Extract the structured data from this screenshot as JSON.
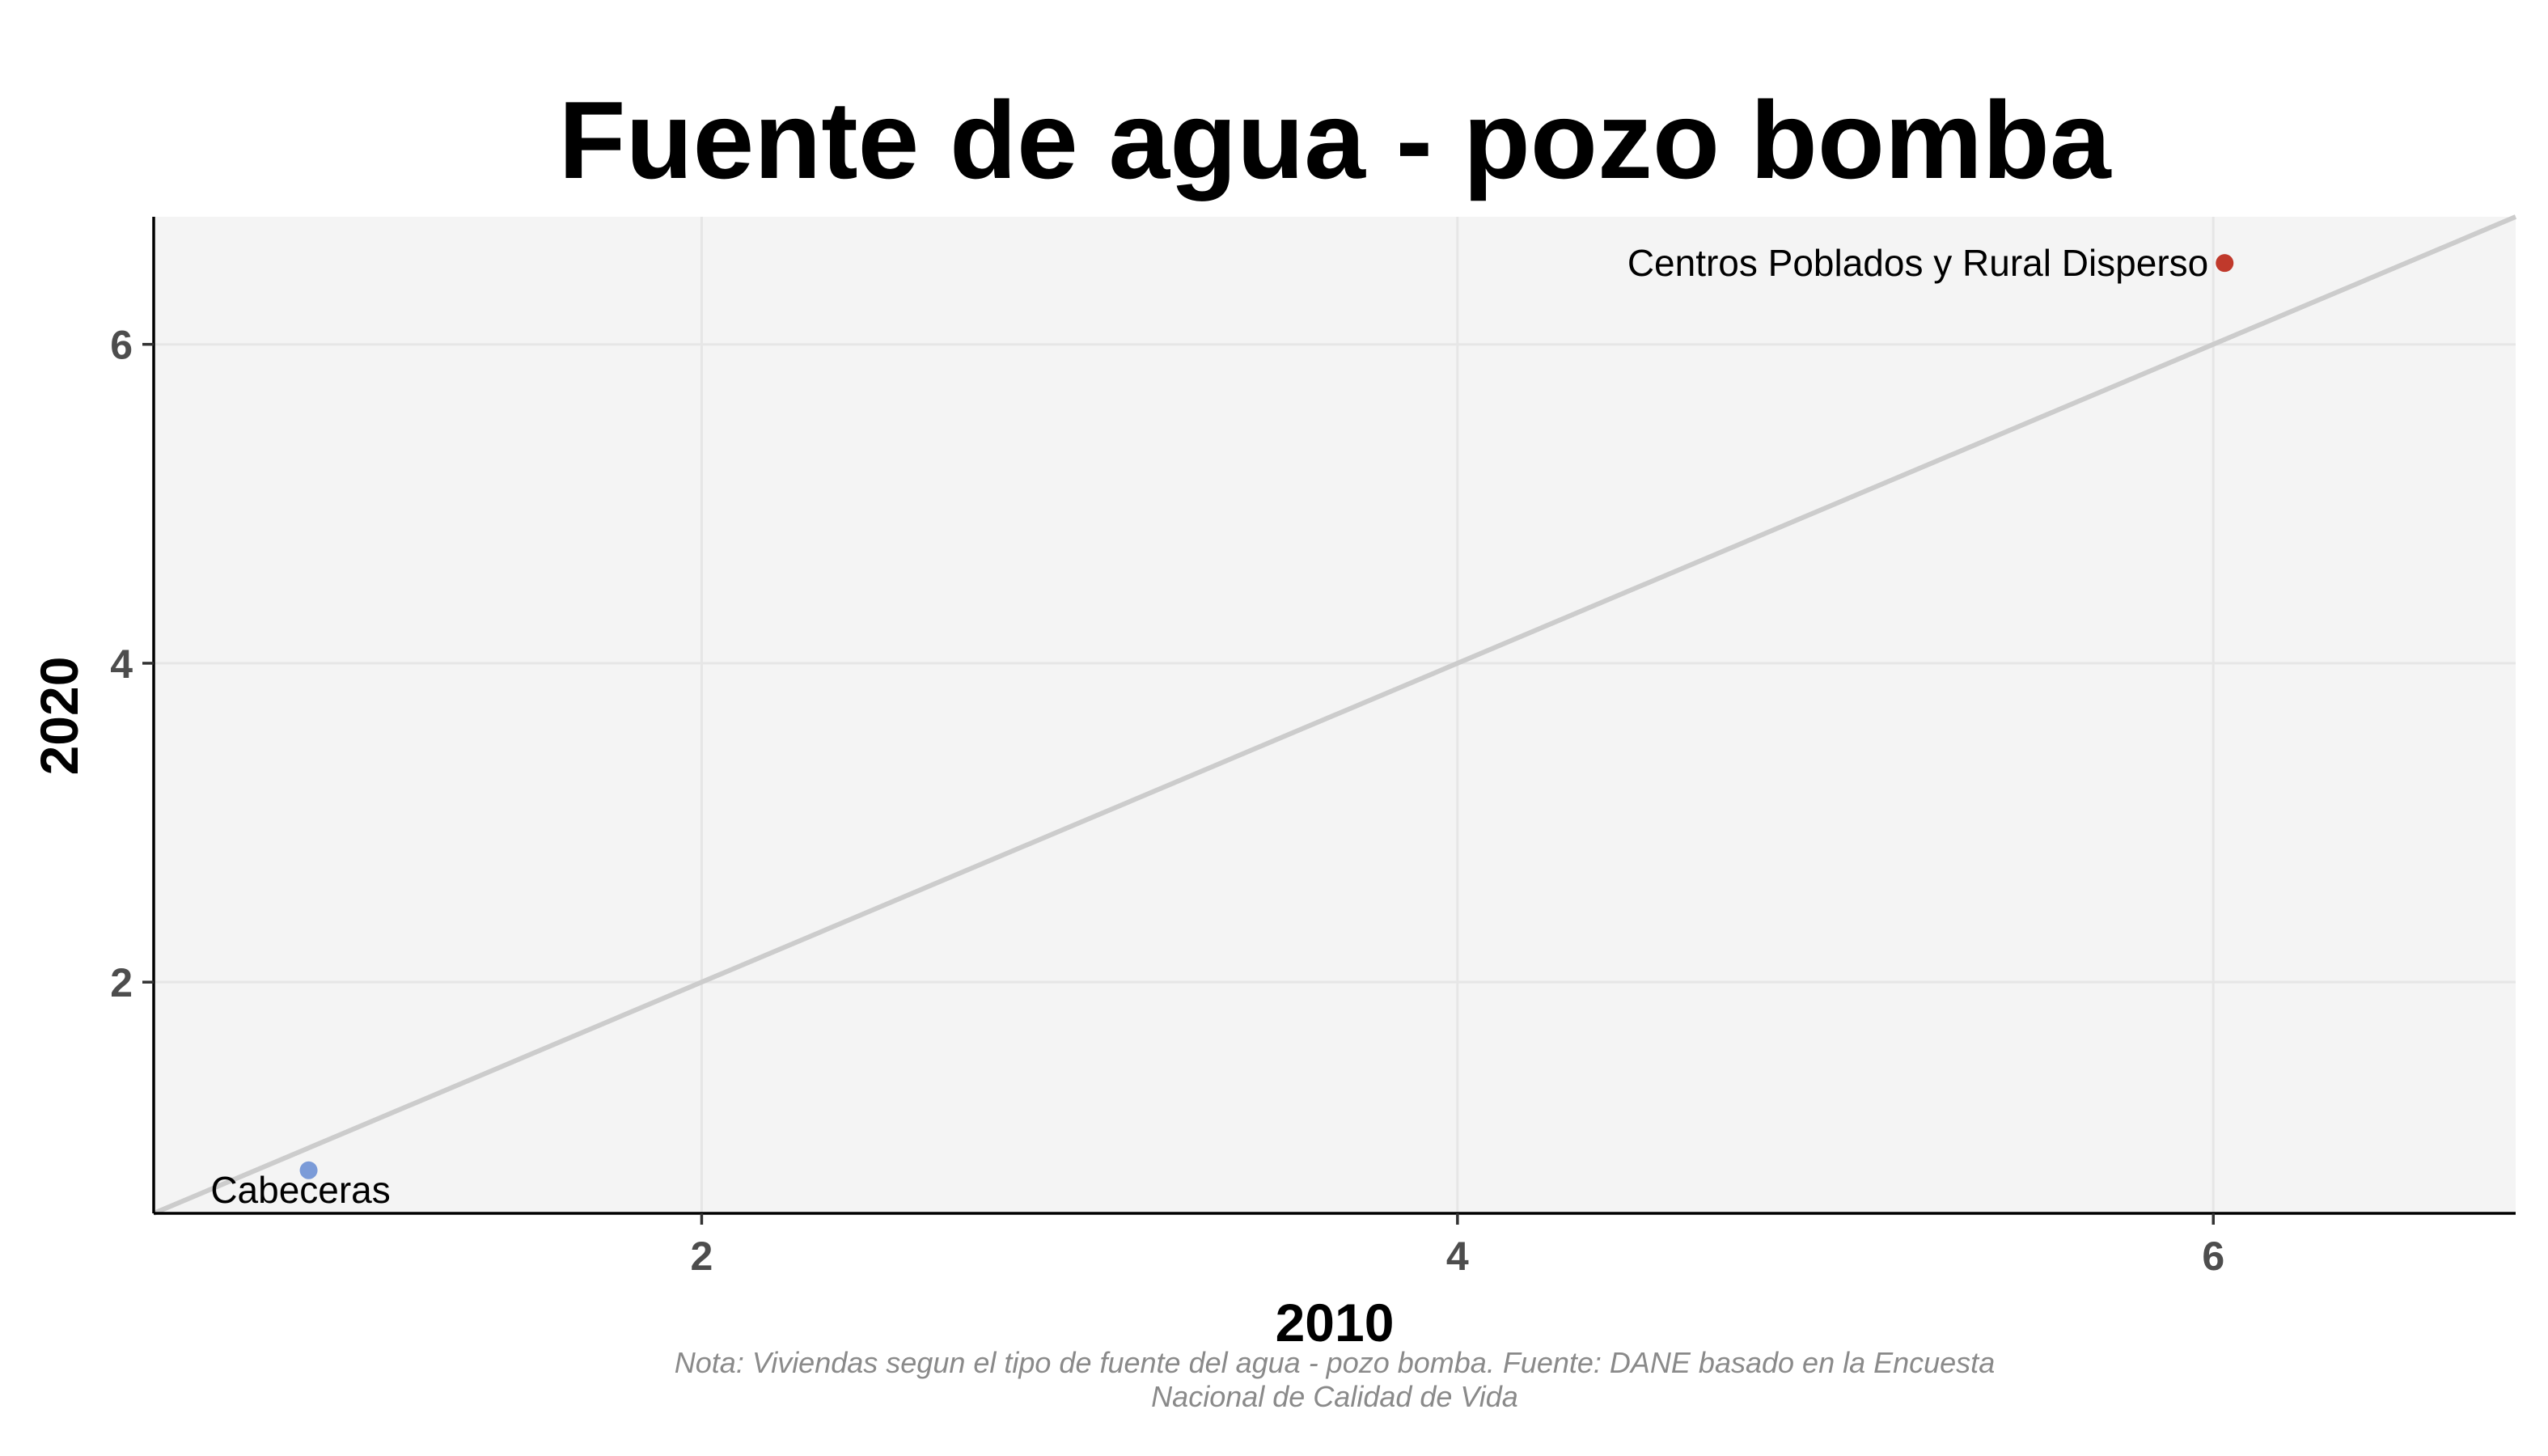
{
  "chart_data": {
    "type": "scatter",
    "title": "Fuente de agua - pozo bomba",
    "xlabel": "2010",
    "ylabel": "2020",
    "xlim": [
      0.55,
      6.8
    ],
    "ylim": [
      0.55,
      6.8
    ],
    "x_ticks": [
      2,
      4,
      6
    ],
    "y_ticks": [
      2,
      4,
      6
    ],
    "grid": true,
    "reference_line": "y = x",
    "points": [
      {
        "label": "Cabeceras",
        "x": 0.96,
        "y": 0.82,
        "color": "#7b9bd8"
      },
      {
        "label": "Centros Poblados y Rural Disperso",
        "x": 6.03,
        "y": 6.51,
        "color": "#c0392b"
      }
    ],
    "caption_lines": [
      "Nota: Viviendas segun el tipo de fuente del agua - pozo bomba. Fuente: DANE basado en la Encuesta",
      "Nacional de Calidad de Vida"
    ]
  }
}
